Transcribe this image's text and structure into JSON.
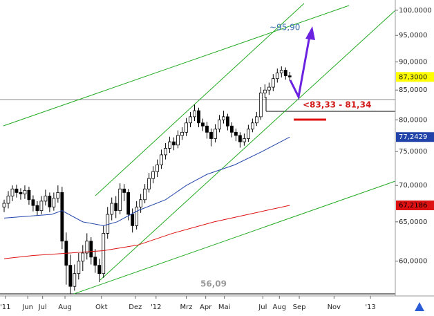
{
  "chart_data": {
    "type": "candlestick",
    "log_scale": true,
    "ylim": [
      55.9,
      102.1
    ],
    "yticks": [
      {
        "value": 100,
        "label": "100,0000"
      },
      {
        "value": 95,
        "label": "95,0000"
      },
      {
        "value": 90,
        "label": "90,0000"
      },
      {
        "value": 85,
        "label": "85,0000"
      },
      {
        "value": 80,
        "label": "80,0000"
      },
      {
        "value": 75,
        "label": "75,0000"
      },
      {
        "value": 70,
        "label": "70,0000"
      },
      {
        "value": 65,
        "label": "65,0000"
      },
      {
        "value": 60,
        "label": "60,0000"
      }
    ],
    "xlim": [
      0,
      95.5
    ],
    "xticks": [
      {
        "value": 1.3,
        "label": "'11"
      },
      {
        "value": 6.7,
        "label": "Jun"
      },
      {
        "value": 10.3,
        "label": "Jul"
      },
      {
        "value": 15.7,
        "label": "Aug"
      },
      {
        "value": 24.5,
        "label": "Okt"
      },
      {
        "value": 32.7,
        "label": "Dez"
      },
      {
        "value": 37.7,
        "label": "'12"
      },
      {
        "value": 45,
        "label": "Mrz"
      },
      {
        "value": 49.7,
        "label": "Apr"
      },
      {
        "value": 54.2,
        "label": "Mai"
      },
      {
        "value": 63.5,
        "label": "Jul"
      },
      {
        "value": 67.5,
        "label": "Aug"
      },
      {
        "value": 72.3,
        "label": "Sep"
      },
      {
        "value": 80.7,
        "label": "Nov"
      },
      {
        "value": 89.5,
        "label": "'13"
      }
    ],
    "candles": {
      "up_color": "#ffffff",
      "down_color": "#000000",
      "last_label_color": "#ffff00",
      "x": [
        1,
        2,
        3,
        4,
        5,
        6,
        7,
        8,
        9,
        10,
        11,
        12,
        13,
        14,
        15,
        16,
        17,
        18,
        19,
        20,
        21,
        22,
        23,
        24,
        25,
        26,
        27,
        28,
        29,
        30,
        31,
        32,
        33,
        34,
        35,
        36,
        37,
        38,
        39,
        40,
        41,
        42,
        43,
        44,
        45,
        46,
        47,
        48,
        49,
        50,
        51,
        52,
        53,
        54,
        55,
        56,
        57,
        58,
        59,
        60,
        61,
        62,
        63,
        64,
        65,
        66,
        67,
        68,
        69,
        70
      ],
      "open": [
        67.0,
        67.5,
        68.5,
        69.5,
        69.0,
        68.8,
        69.3,
        68.0,
        67.2,
        66.5,
        67.8,
        68.5,
        67.0,
        68.2,
        69.0,
        62.5,
        59.5,
        57.0,
        58.5,
        60.0,
        61.0,
        62.5,
        60.5,
        59.5,
        58.5,
        63.5,
        66.0,
        67.5,
        66.5,
        69.5,
        69.0,
        66.0,
        64.5,
        67.0,
        68.0,
        69.5,
        71.0,
        72.0,
        73.0,
        74.5,
        75.5,
        76.5,
        76.0,
        77.5,
        78.0,
        79.5,
        80.5,
        81.5,
        79.5,
        79.0,
        78.0,
        77.0,
        78.5,
        80.0,
        80.5,
        79.0,
        78.0,
        77.5,
        76.5,
        77.0,
        78.5,
        79.5,
        80.5,
        84.5,
        85.0,
        85.5,
        87.0,
        88.0,
        88.5,
        87.5
      ],
      "high": [
        68.0,
        69.2,
        70.0,
        70.1,
        69.6,
        70.0,
        69.8,
        68.6,
        67.8,
        68.5,
        69.4,
        69.0,
        69.0,
        70.0,
        69.8,
        63.6,
        60.8,
        59.6,
        61.0,
        62.0,
        63.5,
        63.0,
        61.5,
        60.3,
        64.5,
        67.0,
        68.3,
        68.5,
        70.3,
        70.2,
        69.5,
        66.8,
        67.8,
        68.8,
        70.2,
        71.8,
        72.8,
        73.8,
        75.3,
        76.3,
        77.3,
        77.2,
        78.3,
        78.8,
        80.3,
        81.3,
        82.5,
        82.0,
        80.2,
        79.7,
        78.6,
        79.3,
        80.8,
        81.5,
        81.0,
        79.6,
        78.6,
        78.0,
        77.8,
        79.2,
        80.2,
        81.3,
        85.5,
        86.0,
        86.3,
        87.8,
        88.8,
        89.2,
        89.0,
        88.2
      ],
      "low": [
        66.3,
        66.8,
        67.8,
        68.3,
        68.0,
        68.1,
        67.3,
        66.4,
        65.8,
        66.0,
        67.2,
        66.3,
        66.5,
        67.6,
        61.5,
        57.2,
        56.09,
        56.5,
        57.8,
        58.8,
        60.2,
        59.6,
        58.6,
        57.5,
        58.0,
        62.8,
        65.2,
        65.5,
        66.0,
        67.8,
        65.2,
        63.6,
        64.0,
        66.2,
        67.5,
        69.0,
        70.3,
        71.2,
        72.4,
        73.8,
        74.8,
        75.2,
        75.5,
        76.8,
        77.4,
        78.8,
        79.8,
        78.8,
        78.2,
        77.0,
        75.8,
        76.4,
        78.0,
        79.4,
        78.3,
        77.2,
        76.6,
        75.6,
        75.9,
        76.5,
        78.0,
        79.0,
        80.0,
        83.6,
        84.2,
        84.8,
        86.3,
        87.2,
        86.8,
        86.6
      ],
      "close": [
        67.5,
        68.5,
        69.5,
        69.0,
        68.8,
        69.3,
        68.0,
        67.2,
        66.5,
        67.8,
        68.5,
        67.0,
        68.2,
        69.0,
        62.5,
        59.5,
        57.0,
        58.5,
        60.0,
        61.0,
        62.5,
        60.5,
        59.5,
        58.5,
        63.5,
        66.0,
        67.5,
        66.5,
        69.5,
        69.0,
        66.0,
        64.5,
        67.0,
        68.0,
        69.5,
        71.0,
        72.0,
        73.0,
        74.5,
        75.5,
        76.5,
        76.0,
        77.5,
        78.0,
        79.5,
        80.5,
        81.5,
        79.5,
        79.0,
        78.0,
        77.0,
        78.5,
        80.0,
        80.5,
        79.0,
        78.0,
        77.5,
        76.5,
        77.0,
        78.5,
        79.5,
        80.5,
        84.5,
        85.0,
        85.5,
        87.0,
        88.0,
        88.5,
        87.5,
        87.3
      ],
      "last_label": "87,3000"
    },
    "moving_averages": [
      {
        "color": "#2244aa",
        "label_text_color": "#ffffff",
        "last_label": "77,2429",
        "x": [
          1,
          12.5,
          15,
          20,
          25,
          28.3,
          33.3,
          40,
          45,
          50,
          56.7,
          63.3,
          70
        ],
        "values": [
          65.5,
          66.0,
          66.5,
          65.0,
          64.5,
          65.0,
          66.5,
          68.0,
          70.0,
          71.6,
          73.0,
          75.0,
          77.2429
        ]
      },
      {
        "color": "#dd1111",
        "label_text_color": "#000000",
        "last_label": "67,2186",
        "x": [
          1,
          8,
          16.7,
          25,
          33.3,
          41.7,
          51.7,
          60,
          70
        ],
        "values": [
          60.3,
          60.7,
          61.0,
          61.3,
          62.0,
          63.5,
          65.0,
          66.0,
          67.2186
        ]
      }
    ],
    "annotations": [
      "~95,90",
      "<83,33 - 81,34",
      "56,09"
    ]
  }
}
